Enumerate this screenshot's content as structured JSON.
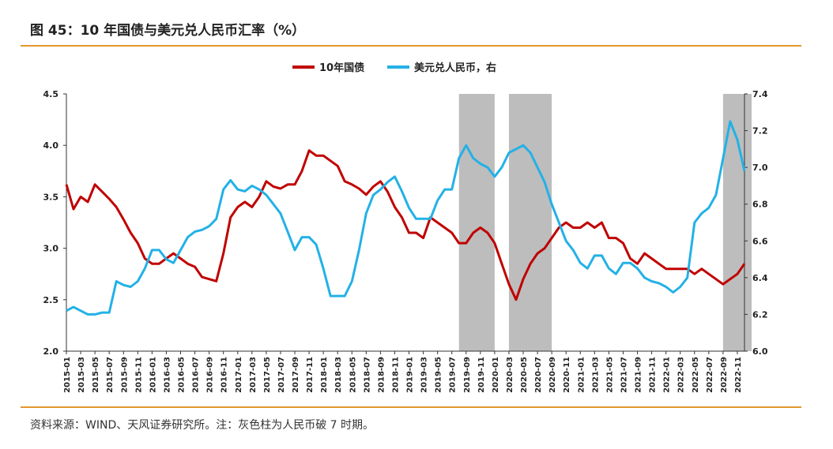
{
  "page": {
    "title": "图 45：10 年国债与美元兑人民币汇率（%）",
    "source": "资料来源：WIND、天风证券研究所。注：灰色柱为人民币破 7 时期。"
  },
  "chart_data": {
    "type": "line",
    "legend": [
      "10年国债",
      "美元兑人民币，右"
    ],
    "y_left": {
      "lim": [
        2.0,
        4.5
      ],
      "ticks": [
        "2.0",
        "2.5",
        "3.0",
        "3.5",
        "4.0",
        "4.5"
      ]
    },
    "y_right": {
      "lim": [
        6.0,
        7.4
      ],
      "ticks": [
        "6.0",
        "6.2",
        "6.4",
        "6.6",
        "6.8",
        "7.0",
        "7.2",
        "7.4"
      ]
    },
    "x_ticks": [
      "2015-01",
      "2015-03",
      "2015-05",
      "2015-07",
      "2015-09",
      "2015-11",
      "2016-01",
      "2016-03",
      "2016-05",
      "2016-07",
      "2016-09",
      "2016-11",
      "2017-01",
      "2017-03",
      "2017-05",
      "2017-07",
      "2017-09",
      "2017-11",
      "2018-01",
      "2018-03",
      "2018-05",
      "2018-07",
      "2018-09",
      "2018-11",
      "2019-01",
      "2019-03",
      "2019-05",
      "2019-07",
      "2019-09",
      "2019-11",
      "2020-01",
      "2020-03",
      "2020-05",
      "2020-07",
      "2020-09",
      "2020-11",
      "2021-01",
      "2021-03",
      "2021-05",
      "2021-07",
      "2021-09",
      "2021-11",
      "2022-01",
      "2022-03",
      "2022-05",
      "2022-07",
      "2022-09",
      "2022-11"
    ],
    "series": [
      {
        "name": "10年国债",
        "axis": "left",
        "color": "#c00000",
        "x": [
          "2015-01",
          "2015-02",
          "2015-03",
          "2015-04",
          "2015-05",
          "2015-06",
          "2015-07",
          "2015-08",
          "2015-09",
          "2015-10",
          "2015-11",
          "2015-12",
          "2016-01",
          "2016-02",
          "2016-03",
          "2016-04",
          "2016-05",
          "2016-06",
          "2016-07",
          "2016-08",
          "2016-09",
          "2016-10",
          "2016-11",
          "2016-12",
          "2017-01",
          "2017-02",
          "2017-03",
          "2017-04",
          "2017-05",
          "2017-06",
          "2017-07",
          "2017-08",
          "2017-09",
          "2017-10",
          "2017-11",
          "2017-12",
          "2018-01",
          "2018-02",
          "2018-03",
          "2018-04",
          "2018-05",
          "2018-06",
          "2018-07",
          "2018-08",
          "2018-09",
          "2018-10",
          "2018-11",
          "2018-12",
          "2019-01",
          "2019-02",
          "2019-03",
          "2019-04",
          "2019-05",
          "2019-06",
          "2019-07",
          "2019-08",
          "2019-09",
          "2019-10",
          "2019-11",
          "2019-12",
          "2020-01",
          "2020-02",
          "2020-03",
          "2020-04",
          "2020-05",
          "2020-06",
          "2020-07",
          "2020-08",
          "2020-09",
          "2020-10",
          "2020-11",
          "2020-12",
          "2021-01",
          "2021-02",
          "2021-03",
          "2021-04",
          "2021-05",
          "2021-06",
          "2021-07",
          "2021-08",
          "2021-09",
          "2021-10",
          "2021-11",
          "2021-12",
          "2022-01",
          "2022-02",
          "2022-03",
          "2022-04",
          "2022-05",
          "2022-06",
          "2022-07",
          "2022-08",
          "2022-09",
          "2022-10",
          "2022-11",
          "2022-12"
        ],
        "values": [
          3.62,
          3.38,
          3.5,
          3.45,
          3.62,
          3.55,
          3.48,
          3.4,
          3.28,
          3.15,
          3.05,
          2.9,
          2.85,
          2.85,
          2.9,
          2.95,
          2.9,
          2.85,
          2.82,
          2.72,
          2.7,
          2.68,
          2.95,
          3.3,
          3.4,
          3.45,
          3.4,
          3.5,
          3.65,
          3.6,
          3.58,
          3.62,
          3.62,
          3.75,
          3.95,
          3.9,
          3.9,
          3.85,
          3.8,
          3.65,
          3.62,
          3.58,
          3.52,
          3.6,
          3.65,
          3.55,
          3.4,
          3.3,
          3.15,
          3.15,
          3.1,
          3.3,
          3.25,
          3.2,
          3.15,
          3.05,
          3.05,
          3.15,
          3.2,
          3.15,
          3.05,
          2.85,
          2.65,
          2.5,
          2.7,
          2.85,
          2.95,
          3.0,
          3.1,
          3.2,
          3.25,
          3.2,
          3.2,
          3.25,
          3.2,
          3.25,
          3.1,
          3.1,
          3.05,
          2.9,
          2.85,
          2.95,
          2.9,
          2.85,
          2.8,
          2.8,
          2.8,
          2.8,
          2.75,
          2.8,
          2.75,
          2.7,
          2.65,
          2.7,
          2.75,
          2.85
        ]
      },
      {
        "name": "美元兑人民币，右",
        "axis": "right",
        "color": "#23b1e6",
        "x": [
          "2015-01",
          "2015-02",
          "2015-03",
          "2015-04",
          "2015-05",
          "2015-06",
          "2015-07",
          "2015-08",
          "2015-09",
          "2015-10",
          "2015-11",
          "2015-12",
          "2016-01",
          "2016-02",
          "2016-03",
          "2016-04",
          "2016-05",
          "2016-06",
          "2016-07",
          "2016-08",
          "2016-09",
          "2016-10",
          "2016-11",
          "2016-12",
          "2017-01",
          "2017-02",
          "2017-03",
          "2017-04",
          "2017-05",
          "2017-06",
          "2017-07",
          "2017-08",
          "2017-09",
          "2017-10",
          "2017-11",
          "2017-12",
          "2018-01",
          "2018-02",
          "2018-03",
          "2018-04",
          "2018-05",
          "2018-06",
          "2018-07",
          "2018-08",
          "2018-09",
          "2018-10",
          "2018-11",
          "2018-12",
          "2019-01",
          "2019-02",
          "2019-03",
          "2019-04",
          "2019-05",
          "2019-06",
          "2019-07",
          "2019-08",
          "2019-09",
          "2019-10",
          "2019-11",
          "2019-12",
          "2020-01",
          "2020-02",
          "2020-03",
          "2020-04",
          "2020-05",
          "2020-06",
          "2020-07",
          "2020-08",
          "2020-09",
          "2020-10",
          "2020-11",
          "2020-12",
          "2021-01",
          "2021-02",
          "2021-03",
          "2021-04",
          "2021-05",
          "2021-06",
          "2021-07",
          "2021-08",
          "2021-09",
          "2021-10",
          "2021-11",
          "2021-12",
          "2022-01",
          "2022-02",
          "2022-03",
          "2022-04",
          "2022-05",
          "2022-06",
          "2022-07",
          "2022-08",
          "2022-09",
          "2022-10",
          "2022-11",
          "2022-12"
        ],
        "values": [
          6.22,
          6.24,
          6.22,
          6.2,
          6.2,
          6.21,
          6.21,
          6.38,
          6.36,
          6.35,
          6.38,
          6.45,
          6.55,
          6.55,
          6.5,
          6.48,
          6.55,
          6.62,
          6.65,
          6.66,
          6.68,
          6.72,
          6.88,
          6.93,
          6.88,
          6.87,
          6.9,
          6.88,
          6.85,
          6.8,
          6.75,
          6.65,
          6.55,
          6.62,
          6.62,
          6.58,
          6.45,
          6.3,
          6.3,
          6.3,
          6.38,
          6.55,
          6.75,
          6.85,
          6.88,
          6.92,
          6.95,
          6.87,
          6.78,
          6.72,
          6.72,
          6.72,
          6.82,
          6.88,
          6.88,
          7.05,
          7.12,
          7.05,
          7.02,
          7.0,
          6.95,
          7.0,
          7.08,
          7.1,
          7.12,
          7.08,
          7.0,
          6.92,
          6.8,
          6.7,
          6.6,
          6.55,
          6.48,
          6.45,
          6.52,
          6.52,
          6.45,
          6.42,
          6.48,
          6.48,
          6.45,
          6.4,
          6.38,
          6.37,
          6.35,
          6.32,
          6.35,
          6.4,
          6.7,
          6.75,
          6.78,
          6.85,
          7.05,
          7.25,
          7.15,
          6.98
        ]
      }
    ],
    "shaded_periods": [
      [
        "2019-08",
        "2019-12"
      ],
      [
        "2020-03",
        "2020-08"
      ],
      [
        "2022-09",
        "2022-12"
      ]
    ],
    "shade_color": "#bdbdbd"
  }
}
